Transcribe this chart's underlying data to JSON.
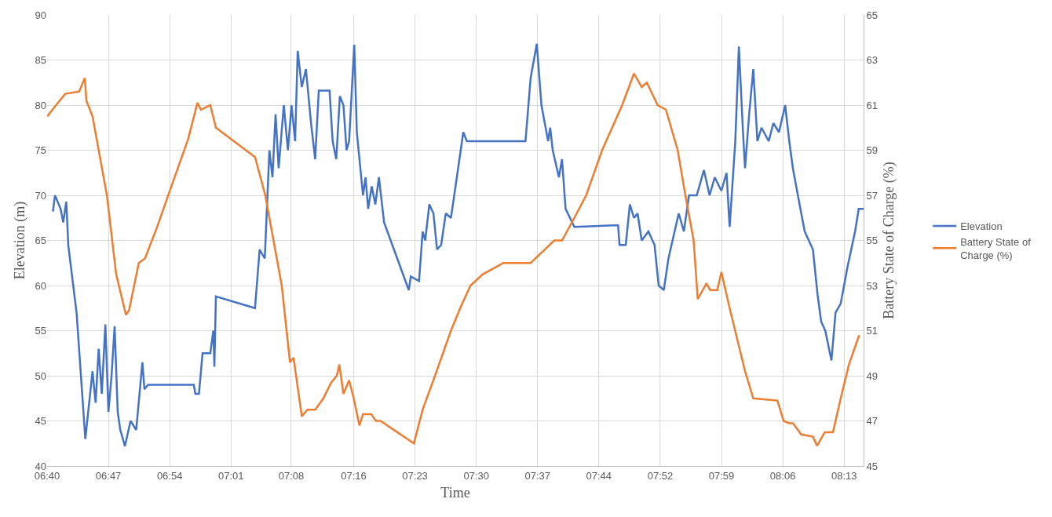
{
  "chart_data": {
    "type": "line",
    "xlabel": "Time",
    "ylabel": "Elevation (m)",
    "y2label": "Battery State of Charge (%)",
    "xlim": [
      6.6667,
      8.2545
    ],
    "xticks": [
      {
        "value": 6.6667,
        "label": "06:40"
      },
      {
        "value": 6.7859,
        "label": "06:47"
      },
      {
        "value": 6.9051,
        "label": "06:54"
      },
      {
        "value": 7.0244,
        "label": "07:01"
      },
      {
        "value": 7.1415,
        "label": "07:08"
      },
      {
        "value": 7.2628,
        "label": "07:16"
      },
      {
        "value": 7.3821,
        "label": "07:23"
      },
      {
        "value": 7.5013,
        "label": "07:30"
      },
      {
        "value": 7.6205,
        "label": "07:37"
      },
      {
        "value": 7.7397,
        "label": "07:44"
      },
      {
        "value": 7.859,
        "label": "07:52"
      },
      {
        "value": 7.9782,
        "label": "07:59"
      },
      {
        "value": 8.0974,
        "label": "08:06"
      },
      {
        "value": 8.2167,
        "label": "08:13"
      }
    ],
    "ylim": [
      40,
      90
    ],
    "yticks": [
      40,
      45,
      50,
      55,
      60,
      65,
      70,
      75,
      80,
      85,
      90
    ],
    "y2lim": [
      45,
      65
    ],
    "y2ticks": [
      45,
      47,
      49,
      51,
      53,
      55,
      57,
      59,
      61,
      63,
      65
    ],
    "grid": true,
    "legend": "right",
    "line_style": "solid",
    "marker": "none",
    "series": [
      {
        "name": "Elevation",
        "color": "#4472c4",
        "x": [
          6.678,
          6.682,
          6.693,
          6.698,
          6.704,
          6.708,
          6.724,
          6.741,
          6.755,
          6.761,
          6.767,
          6.773,
          6.78,
          6.786,
          6.792,
          6.798,
          6.804,
          6.809,
          6.818,
          6.829,
          6.84,
          6.852,
          6.856,
          6.863,
          6.952,
          6.955,
          6.962,
          6.969,
          6.984,
          6.99,
          6.992,
          6.995,
          7.071,
          7.08,
          7.09,
          7.099,
          7.105,
          7.111,
          7.117,
          7.127,
          7.135,
          7.142,
          7.149,
          7.154,
          7.162,
          7.17,
          7.18,
          7.188,
          7.195,
          7.216,
          7.222,
          7.229,
          7.236,
          7.243,
          7.249,
          7.254,
          7.264,
          7.269,
          7.281,
          7.286,
          7.291,
          7.298,
          7.305,
          7.312,
          7.322,
          7.37,
          7.374,
          7.39,
          7.397,
          7.402,
          7.41,
          7.418,
          7.425,
          7.433,
          7.442,
          7.452,
          7.461,
          7.476,
          7.483,
          7.597,
          7.607,
          7.619,
          7.628,
          7.641,
          7.645,
          7.65,
          7.662,
          7.668,
          7.675,
          7.692,
          7.777,
          7.78,
          7.792,
          7.8,
          7.808,
          7.815,
          7.823,
          7.836,
          7.848,
          7.856,
          7.866,
          7.875,
          7.885,
          7.895,
          7.905,
          7.915,
          7.93,
          7.944,
          7.955,
          7.965,
          7.978,
          7.988,
          7.994,
          8.005,
          8.012,
          8.02,
          8.024,
          8.032,
          8.04,
          8.048,
          8.056,
          8.07,
          8.079,
          8.09,
          8.102,
          8.11,
          8.117,
          8.13,
          8.14,
          8.156,
          8.165,
          8.172,
          8.18,
          8.192,
          8.2,
          8.21,
          8.223,
          8.238,
          8.245,
          8.2545
        ],
        "values": [
          68.2,
          70,
          68.5,
          67,
          69.3,
          64.4,
          57,
          43,
          50.5,
          47,
          53,
          48,
          55.7,
          46,
          50,
          55.5,
          46,
          44,
          42.2,
          45,
          44,
          51.5,
          48.5,
          49,
          49,
          48,
          48,
          52.5,
          52.5,
          55,
          51,
          58.8,
          57.5,
          64,
          63,
          75,
          72,
          79,
          73,
          80,
          75,
          80,
          76,
          86,
          82,
          84,
          78,
          74,
          81.6,
          81.6,
          76,
          74,
          81,
          80,
          75,
          76,
          86.7,
          77,
          70,
          72,
          68.5,
          71,
          69,
          72,
          67,
          59.5,
          61,
          60.5,
          66,
          65,
          69,
          68,
          64,
          64.5,
          68,
          67.5,
          71,
          77,
          76,
          76,
          83,
          86.8,
          80,
          76,
          77.5,
          75,
          72,
          74,
          68.5,
          66.5,
          66.7,
          64.5,
          64.5,
          69,
          67.5,
          68,
          65,
          66,
          64.5,
          60,
          59.5,
          63,
          65.5,
          68,
          66,
          70,
          70,
          72.8,
          70,
          72,
          70.5,
          72.5,
          66.5,
          76,
          86.5,
          77,
          73,
          79,
          84,
          76,
          77.5,
          76,
          78,
          77,
          80,
          76,
          73,
          69,
          66,
          64,
          59,
          56,
          55,
          51.7,
          57,
          58,
          62,
          66,
          68.5,
          68.5
        ]
      },
      {
        "name": "Battery State of Charge (%)",
        "color": "#ed7d31",
        "axis": "y2",
        "x": [
          6.667,
          6.684,
          6.702,
          6.729,
          6.74,
          6.743,
          6.755,
          6.783,
          6.801,
          6.82,
          6.826,
          6.845,
          6.857,
          6.879,
          6.91,
          6.941,
          6.959,
          6.966,
          6.984,
          6.995,
          7.071,
          7.091,
          7.123,
          7.139,
          7.146,
          7.162,
          7.173,
          7.188,
          7.204,
          7.219,
          7.23,
          7.235,
          7.243,
          7.254,
          7.263,
          7.274,
          7.281,
          7.297,
          7.306,
          7.315,
          7.38,
          7.397,
          7.421,
          7.452,
          7.47,
          7.49,
          7.514,
          7.554,
          7.607,
          7.63,
          7.653,
          7.668,
          7.692,
          7.715,
          7.746,
          7.785,
          7.808,
          7.823,
          7.833,
          7.854,
          7.87,
          7.893,
          7.908,
          7.924,
          7.932,
          7.949,
          7.956,
          7.97,
          7.978,
          7.994,
          8.024,
          8.04,
          8.087,
          8.099,
          8.11,
          8.117,
          8.133,
          8.156,
          8.164,
          8.179,
          8.195,
          8.21,
          8.226,
          8.246
        ],
        "values": [
          60.5,
          61,
          61.5,
          61.6,
          62.2,
          61.2,
          60.5,
          57,
          53.5,
          51.7,
          51.9,
          54,
          54.2,
          55.5,
          57.5,
          59.5,
          61.1,
          60.8,
          61,
          60,
          58.7,
          57,
          53,
          49.6,
          49.8,
          47.2,
          47.5,
          47.5,
          48,
          48.7,
          49,
          49.5,
          48.2,
          48.8,
          48,
          46.8,
          47.3,
          47.3,
          47,
          47,
          46,
          47.5,
          49,
          51,
          52,
          53,
          53.5,
          54,
          54,
          54.5,
          55,
          55,
          56,
          57,
          59,
          61,
          62.4,
          61.8,
          62,
          61,
          60.8,
          59,
          57,
          55,
          52.4,
          53.1,
          52.8,
          52.8,
          53.6,
          52,
          49.2,
          48,
          47.9,
          47,
          46.9,
          46.9,
          46.4,
          46.3,
          45.9,
          46.5,
          46.5,
          48,
          49.5,
          50.8
        ]
      }
    ]
  }
}
